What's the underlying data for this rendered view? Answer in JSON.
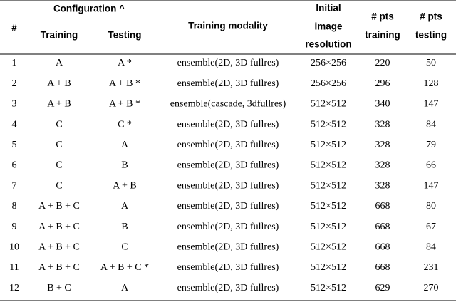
{
  "header": {
    "index": "#",
    "configuration": "Configuration ^",
    "training": "Training",
    "testing": "Testing",
    "modality": "Training modality",
    "resolution": [
      "Initial",
      "image",
      "resolution"
    ],
    "pts_training": [
      "# pts",
      "training"
    ],
    "pts_testing": [
      "# pts",
      "testing"
    ]
  },
  "table": {
    "rows": [
      [
        1,
        "A",
        "A *",
        "ensemble(2D, 3D fullres)",
        "256×256",
        220,
        50
      ],
      [
        2,
        "A + B",
        "A + B *",
        "ensemble(2D, 3D fullres)",
        "256×256",
        296,
        128
      ],
      [
        3,
        "A + B",
        "A + B *",
        "ensemble(cascade, 3dfullres)",
        "512×512",
        340,
        147
      ],
      [
        4,
        "C",
        "C *",
        "ensemble(2D, 3D fullres)",
        "512×512",
        328,
        84
      ],
      [
        5,
        "C",
        "A",
        "ensemble(2D, 3D fullres)",
        "512×512",
        328,
        79
      ],
      [
        6,
        "C",
        "B",
        "ensemble(2D, 3D fullres)",
        "512×512",
        328,
        66
      ],
      [
        7,
        "C",
        "A + B",
        "ensemble(2D, 3D fullres)",
        "512×512",
        328,
        147
      ],
      [
        8,
        "A + B + C",
        "A",
        "ensemble(2D, 3D fullres)",
        "512×512",
        668,
        80
      ],
      [
        9,
        "A + B + C",
        "B",
        "ensemble(2D, 3D fullres)",
        "512×512",
        668,
        67
      ],
      [
        10,
        "A + B + C",
        "C",
        "ensemble(2D, 3D fullres)",
        "512×512",
        668,
        84
      ],
      [
        11,
        "A + B + C",
        "A + B + C *",
        "ensemble(2D, 3D fullres)",
        "512×512",
        668,
        231
      ],
      [
        12,
        "B + C",
        "A",
        "ensemble(2D, 3D fullres)",
        "512×512",
        629,
        270
      ]
    ]
  }
}
